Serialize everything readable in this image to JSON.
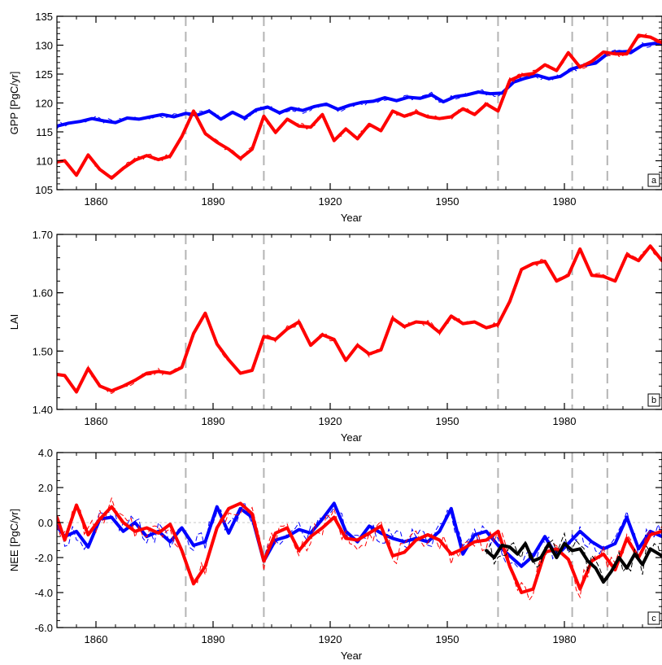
{
  "chart_data": [
    {
      "panel": "a",
      "type": "line",
      "xlabel": "Year",
      "ylabel": "GPP [PgC/yr]",
      "xlim": [
        1850,
        2005
      ],
      "ylim": [
        105,
        135
      ],
      "xticks": [
        1860,
        1890,
        1920,
        1950,
        1980
      ],
      "yticks": [
        105,
        110,
        115,
        120,
        125,
        130,
        135
      ],
      "ytick_labels": [
        "105",
        "110",
        "115",
        "120",
        "125",
        "130",
        "135"
      ],
      "vlines": [
        1883,
        1903,
        1963,
        1982,
        1991
      ],
      "series": [
        {
          "color": "#0000ff",
          "x": [
            1850,
            1853,
            1856,
            1859,
            1862,
            1865,
            1868,
            1871,
            1874,
            1877,
            1880,
            1883,
            1886,
            1889,
            1892,
            1895,
            1898,
            1901,
            1904,
            1907,
            1910,
            1913,
            1916,
            1919,
            1922,
            1925,
            1928,
            1931,
            1934,
            1937,
            1940,
            1943,
            1946,
            1949,
            1952,
            1955,
            1958,
            1961,
            1964,
            1967,
            1970,
            1973,
            1976,
            1979,
            1982,
            1985,
            1988,
            1991,
            1994,
            1997,
            2000,
            2003,
            2005
          ],
          "y": [
            116,
            116.5,
            116.8,
            117.3,
            116.9,
            116.6,
            117.4,
            117.2,
            117.6,
            118,
            117.6,
            118.2,
            117.9,
            118.6,
            117.2,
            118.4,
            117.4,
            118.8,
            119.3,
            118.3,
            119.1,
            118.7,
            119.4,
            119.8,
            118.9,
            119.6,
            120.1,
            120.3,
            120.9,
            120.4,
            121,
            120.8,
            121.4,
            120.2,
            121.1,
            121.4,
            121.9,
            121.6,
            121.7,
            123.6,
            124.3,
            124.8,
            124.2,
            124.6,
            125.9,
            126.5,
            126.9,
            128.5,
            128.9,
            128.7,
            130,
            130.3,
            130.2
          ]
        },
        {
          "color": "#ff0000",
          "x": [
            1850,
            1852,
            1855,
            1858,
            1861,
            1864,
            1867,
            1870,
            1873,
            1876,
            1879,
            1882,
            1885,
            1888,
            1891,
            1894,
            1897,
            1900,
            1903,
            1906,
            1909,
            1912,
            1915,
            1918,
            1921,
            1924,
            1927,
            1930,
            1933,
            1936,
            1939,
            1942,
            1945,
            1948,
            1951,
            1954,
            1957,
            1960,
            1963,
            1966,
            1969,
            1972,
            1975,
            1978,
            1981,
            1984,
            1987,
            1990,
            1993,
            1996,
            1999,
            2002,
            2005
          ],
          "y": [
            109.8,
            110,
            107.5,
            111,
            108.5,
            107,
            108.7,
            110.1,
            110.9,
            110.2,
            110.8,
            114.2,
            118.6,
            114.7,
            113.2,
            112,
            110.4,
            112,
            117.7,
            114.9,
            117.2,
            116,
            115.8,
            118,
            113.5,
            115.5,
            113.8,
            116.3,
            115.2,
            118.6,
            117.7,
            118.4,
            117.6,
            117.3,
            117.6,
            119,
            118,
            119.8,
            118.6,
            123.9,
            124.8,
            125.1,
            126.6,
            125.6,
            128.7,
            126.2,
            127.2,
            128.8,
            128.5,
            128.5,
            131.7,
            131.4,
            130.4
          ]
        }
      ]
    },
    {
      "panel": "b",
      "type": "line",
      "xlabel": "Year",
      "ylabel": "LAI",
      "xlim": [
        1850,
        2005
      ],
      "ylim": [
        1.4,
        1.7
      ],
      "xticks": [
        1860,
        1890,
        1920,
        1950,
        1980
      ],
      "yticks": [
        1.4,
        1.5,
        1.6,
        1.7
      ],
      "ytick_labels": [
        "1.40",
        "1.50",
        "1.60",
        "1.70"
      ],
      "vlines": [
        1883,
        1903,
        1963,
        1982,
        1991
      ],
      "series": [
        {
          "color": "#ff0000",
          "x": [
            1850,
            1852,
            1855,
            1858,
            1861,
            1864,
            1867,
            1870,
            1873,
            1876,
            1879,
            1882,
            1885,
            1888,
            1891,
            1894,
            1897,
            1900,
            1903,
            1906,
            1909,
            1912,
            1915,
            1918,
            1921,
            1924,
            1927,
            1930,
            1933,
            1936,
            1939,
            1942,
            1945,
            1948,
            1951,
            1954,
            1957,
            1960,
            1963,
            1966,
            1969,
            1972,
            1975,
            1978,
            1981,
            1984,
            1987,
            1990,
            1993,
            1996,
            1999,
            2002,
            2005
          ],
          "y": [
            1.46,
            1.458,
            1.43,
            1.47,
            1.44,
            1.432,
            1.44,
            1.45,
            1.462,
            1.465,
            1.462,
            1.472,
            1.53,
            1.565,
            1.512,
            1.485,
            1.462,
            1.467,
            1.525,
            1.52,
            1.538,
            1.55,
            1.51,
            1.528,
            1.52,
            1.484,
            1.51,
            1.495,
            1.502,
            1.556,
            1.542,
            1.55,
            1.548,
            1.532,
            1.56,
            1.547,
            1.55,
            1.54,
            1.546,
            1.585,
            1.64,
            1.65,
            1.654,
            1.62,
            1.63,
            1.675,
            1.63,
            1.628,
            1.62,
            1.665,
            1.655,
            1.68,
            1.655
          ]
        }
      ]
    },
    {
      "panel": "c",
      "type": "line",
      "xlabel": "Year",
      "ylabel": "NEE [PgC/yr]",
      "xlim": [
        1850,
        2005
      ],
      "ylim": [
        -6.0,
        4.0
      ],
      "xticks": [
        1860,
        1890,
        1920,
        1950,
        1980
      ],
      "yticks": [
        -6.0,
        -4.0,
        -2.0,
        0.0,
        2.0,
        4.0
      ],
      "ytick_labels": [
        "-6.0",
        "-4.0",
        "-2.0",
        "0.0",
        "2.0",
        "4.0"
      ],
      "hlines": [
        0
      ],
      "vlines": [
        1883,
        1903,
        1963,
        1982,
        1991
      ],
      "series": [
        {
          "color": "#0000ff",
          "x": [
            1850,
            1852,
            1855,
            1858,
            1861,
            1864,
            1867,
            1870,
            1873,
            1876,
            1879,
            1882,
            1885,
            1888,
            1891,
            1894,
            1897,
            1900,
            1903,
            1906,
            1909,
            1912,
            1915,
            1918,
            1921,
            1924,
            1927,
            1930,
            1933,
            1936,
            1939,
            1942,
            1945,
            1948,
            1951,
            1954,
            1957,
            1960,
            1963,
            1966,
            1969,
            1972,
            1975,
            1978,
            1981,
            1984,
            1987,
            1990,
            1993,
            1996,
            1999,
            2002,
            2005
          ],
          "y": [
            -0.2,
            -0.8,
            -0.5,
            -1.4,
            0.2,
            0.3,
            -0.5,
            0,
            -0.8,
            -0.5,
            -1.1,
            -0.3,
            -1.3,
            -1.1,
            0.9,
            -0.6,
            0.8,
            0.3,
            -2.2,
            -1.0,
            -0.8,
            -0.4,
            -0.6,
            0.2,
            1.1,
            -0.5,
            -1.1,
            -0.2,
            -0.6,
            -0.9,
            -1.1,
            -0.9,
            -1.1,
            -0.5,
            0.8,
            -1.8,
            -0.7,
            -0.5,
            -1.3,
            -1.9,
            -2.5,
            -1.9,
            -0.8,
            -1.9,
            -1.2,
            -0.5,
            -1.1,
            -1.5,
            -1.2,
            0.3,
            -1.5,
            -0.5,
            -0.8
          ]
        },
        {
          "color": "#ff0000",
          "x": [
            1850,
            1852,
            1855,
            1858,
            1861,
            1864,
            1867,
            1870,
            1873,
            1876,
            1879,
            1882,
            1885,
            1888,
            1891,
            1894,
            1897,
            1900,
            1903,
            1906,
            1909,
            1912,
            1915,
            1918,
            1921,
            1924,
            1927,
            1930,
            1933,
            1936,
            1939,
            1942,
            1945,
            1948,
            1951,
            1954,
            1957,
            1960,
            1963,
            1966,
            1969,
            1972,
            1975,
            1978,
            1981,
            1984,
            1987,
            1990,
            1993,
            1996,
            1999,
            2002,
            2005
          ],
          "y": [
            0.3,
            -1.0,
            1.0,
            -0.7,
            0.2,
            0.9,
            0,
            -0.5,
            -0.3,
            -0.6,
            -0.1,
            -1.6,
            -3.5,
            -2.5,
            -0.3,
            0.8,
            1.1,
            0.5,
            -2.2,
            -0.6,
            -0.3,
            -1.6,
            -0.8,
            -0.3,
            0.3,
            -0.9,
            -1.0,
            -0.6,
            -0.2,
            -1.9,
            -1.7,
            -1.0,
            -0.7,
            -1.0,
            -1.8,
            -1.5,
            -1.1,
            -1.0,
            -0.5,
            -2.5,
            -4.0,
            -3.8,
            -1.7,
            -1.5,
            -2.1,
            -3.8,
            -2.2,
            -1.8,
            -2.7,
            -0.9,
            -2.0,
            -0.7,
            -0.5
          ]
        },
        {
          "color": "#000000",
          "x": [
            1960,
            1962,
            1964,
            1966,
            1968,
            1970,
            1972,
            1974,
            1976,
            1978,
            1980,
            1982,
            1984,
            1986,
            1988,
            1990,
            1992,
            1994,
            1996,
            1998,
            2000,
            2002,
            2005
          ],
          "y": [
            -1.6,
            -2.0,
            -1.3,
            -1.4,
            -1.8,
            -1.2,
            -2.2,
            -2.0,
            -1.2,
            -2.0,
            -1.2,
            -1.6,
            -1.5,
            -2.2,
            -2.6,
            -3.4,
            -2.8,
            -2.0,
            -2.6,
            -1.8,
            -2.4,
            -1.5,
            -1.9
          ]
        }
      ]
    }
  ]
}
